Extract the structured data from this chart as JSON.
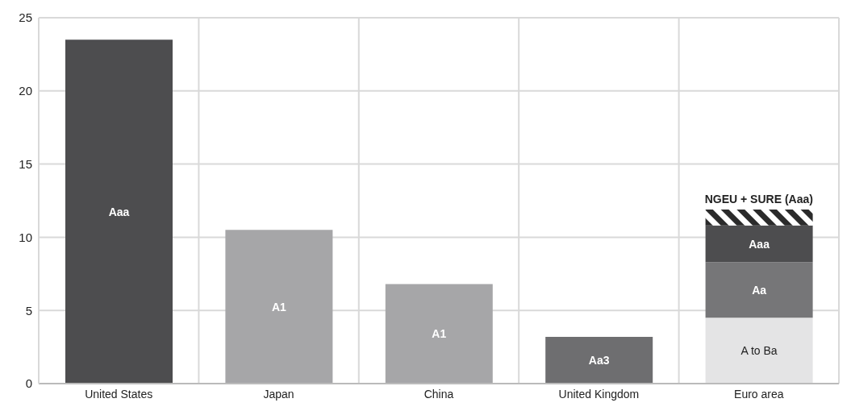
{
  "chart_data": {
    "type": "bar",
    "stacked": true,
    "categories": [
      "United States",
      "Japan",
      "China",
      "United Kingdom",
      "Euro area"
    ],
    "series": [
      {
        "color": "#e4e4e5",
        "values": [
          null,
          null,
          null,
          null,
          4.5
        ],
        "value_labels": [
          null,
          null,
          null,
          null,
          "A to Ba"
        ]
      },
      {
        "color": "#767678",
        "values": [
          null,
          null,
          null,
          null,
          3.8
        ],
        "value_labels": [
          null,
          null,
          null,
          null,
          "Aa"
        ]
      },
      {
        "color": "#a6a6a8",
        "values": [
          null,
          10.5,
          6.8,
          null,
          null
        ],
        "value_labels": [
          null,
          "A1",
          "A1",
          null,
          null
        ]
      },
      {
        "color": "#6e6e70",
        "values": [
          null,
          null,
          null,
          3.2,
          null
        ],
        "value_labels": [
          null,
          null,
          null,
          "Aa3",
          null
        ]
      },
      {
        "color": "#4d4d4f",
        "values": [
          23.5,
          null,
          null,
          null,
          2.5
        ],
        "value_labels": [
          "Aaa",
          null,
          null,
          null,
          "Aaa"
        ]
      },
      {
        "color": "#2b2b2b",
        "values": [
          null,
          null,
          null,
          null,
          1.1
        ]
      }
    ],
    "annotations": [
      {
        "text": "NGEU + SURE (Aaa)",
        "x": "Euro area",
        "y": 11.9
      }
    ],
    "ylim": [
      0,
      25
    ],
    "yticks": [
      0,
      5,
      10,
      15,
      20,
      25
    ],
    "grid": true
  }
}
